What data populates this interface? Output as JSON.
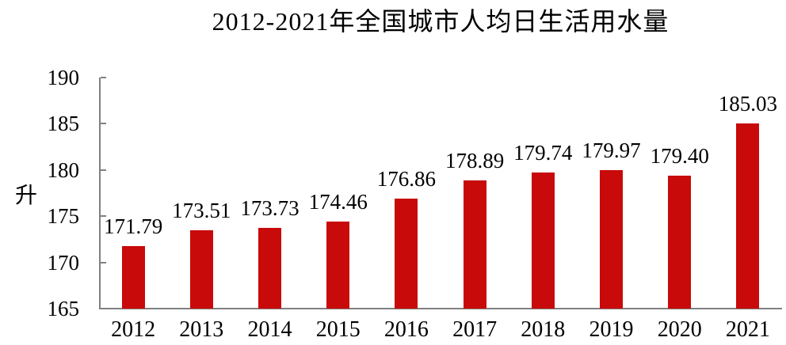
{
  "chart_data": {
    "type": "bar",
    "title": "2012-2021年全国城市人均日生活用水量",
    "ylabel": "升",
    "xlabel": "",
    "categories": [
      "2012",
      "2013",
      "2014",
      "2015",
      "2016",
      "2017",
      "2018",
      "2019",
      "2020",
      "2021"
    ],
    "values": [
      171.79,
      173.51,
      173.73,
      174.46,
      176.86,
      178.89,
      179.74,
      179.97,
      179.4,
      185.03
    ],
    "data_labels": [
      "171.79",
      "173.51",
      "173.73",
      "174.46",
      "176.86",
      "178.89",
      "179.74",
      "179.97",
      "179.40",
      "185.03"
    ],
    "ylim": [
      165,
      190
    ],
    "yticks": [
      165,
      170,
      175,
      180,
      185,
      190
    ],
    "grid": false,
    "legend": false,
    "bar_color": "#C80A0A",
    "axis_color": "#808080",
    "text_color": "#000000"
  }
}
